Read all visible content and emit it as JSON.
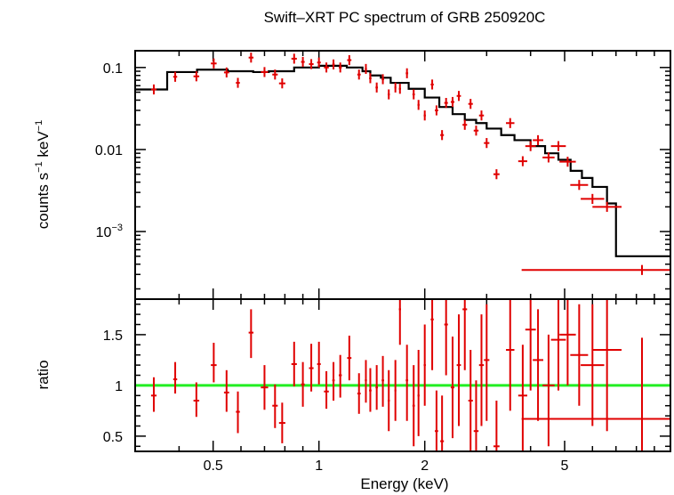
{
  "title": "Swift–XRT PC spectrum of GRB 250920C",
  "chart_data": [
    {
      "type": "scatter",
      "panel": "spectrum",
      "ylabel_main": "counts s",
      "ylabel_exp1": "−1",
      "ylabel_mid": " keV",
      "ylabel_exp2": "−1",
      "xscale": "log",
      "yscale": "log",
      "xlim": [
        0.3,
        10
      ],
      "ylim": [
        0.00015,
        0.16
      ],
      "yticks": [
        {
          "value": 0.1,
          "label": "0.1",
          "mant": "",
          "exp": ""
        },
        {
          "value": 0.01,
          "label": "0.01",
          "mant": "",
          "exp": ""
        },
        {
          "value": 0.001,
          "label": "",
          "mant": "10",
          "exp": "−3"
        }
      ],
      "data_color": "#e00000",
      "model_color": "#000000",
      "series": [
        {
          "name": "data",
          "points": [
            [
              0.339,
              0.054,
              0.018,
              0.01
            ],
            [
              0.39,
              0.077,
              0.013,
              0.016
            ],
            [
              0.448,
              0.078,
              0.019,
              0.012
            ],
            [
              0.502,
              0.112,
              0.019,
              0.013
            ],
            [
              0.546,
              0.087,
              0.017,
              0.013
            ],
            [
              0.588,
              0.065,
              0.013,
              0.013
            ],
            [
              0.641,
              0.132,
              0.016,
              0.014
            ],
            [
              0.7,
              0.088,
              0.024,
              0.013
            ],
            [
              0.75,
              0.082,
              0.018,
              0.012
            ],
            [
              0.786,
              0.064,
              0.021,
              0.01
            ],
            [
              0.85,
              0.128,
              0.018,
              0.013
            ],
            [
              0.9,
              0.117,
              0.012,
              0.013
            ],
            [
              0.951,
              0.11,
              0.015,
              0.014
            ],
            [
              1.0,
              0.115,
              0.012,
              0.014
            ],
            [
              1.05,
              0.1,
              0.016,
              0.01
            ],
            [
              1.1,
              0.109,
              0.008,
              0.011
            ],
            [
              1.15,
              0.1,
              0.01,
              0.01
            ],
            [
              1.22,
              0.123,
              0.014,
              0.013
            ],
            [
              1.3,
              0.082,
              0.011,
              0.009
            ],
            [
              1.36,
              0.096,
              0.007,
              0.01
            ],
            [
              1.4,
              0.074,
              0.008,
              0.008
            ],
            [
              1.46,
              0.057,
              0.008,
              0.008
            ],
            [
              1.52,
              0.072,
              0.008,
              0.008
            ],
            [
              1.58,
              0.047,
              0.007,
              0.009
            ],
            [
              1.65,
              0.057,
              0.006,
              0.009
            ],
            [
              1.7,
              0.055,
              0.007,
              0.01
            ],
            [
              1.78,
              0.085,
              0.008,
              0.01
            ],
            [
              1.86,
              0.047,
              0.008,
              0.009
            ],
            [
              1.92,
              0.035,
              0.007,
              0.01
            ],
            [
              2.0,
              0.026,
              0.007,
              0.01
            ],
            [
              2.1,
              0.062,
              0.01,
              0.01
            ],
            [
              2.16,
              0.03,
              0.011,
              0.01
            ],
            [
              2.24,
              0.015,
              0.012,
              0.01
            ],
            [
              2.3,
              0.037,
              0.012,
              0.01
            ],
            [
              2.4,
              0.038,
              0.012,
              0.01
            ],
            [
              2.5,
              0.045,
              0.014,
              0.01
            ],
            [
              2.6,
              0.02,
              0.015,
              0.01
            ],
            [
              2.7,
              0.036,
              0.015,
              0.01
            ],
            [
              2.8,
              0.017,
              0.016,
              0.01
            ],
            [
              2.9,
              0.026,
              0.016,
              0.01
            ],
            [
              3.0,
              0.012,
              0.018,
              0.01
            ],
            [
              3.2,
              0.005,
              0.02,
              0.01
            ],
            [
              3.5,
              0.021,
              0.028,
              0.01
            ],
            [
              3.8,
              0.0072,
              0.03,
              0.01
            ],
            [
              4.0,
              0.011,
              0.035,
              0.01
            ],
            [
              4.2,
              0.013,
              0.035,
              0.01
            ],
            [
              4.5,
              0.008,
              0.04,
              0.01
            ],
            [
              4.8,
              0.011,
              0.05,
              0.01
            ],
            [
              5.1,
              0.0071,
              0.055,
              0.01
            ],
            [
              5.5,
              0.0037,
              0.06,
              0.01
            ],
            [
              6.0,
              0.0025,
              0.08,
              0.01
            ],
            [
              6.6,
              0.002,
              0.1,
              0.01
            ],
            [
              8.3,
              0.00034,
              1.2,
              0.01
            ]
          ]
        },
        {
          "name": "model",
          "steps": [
            [
              0.3,
              0.054
            ],
            [
              0.37,
              0.088
            ],
            [
              0.45,
              0.094
            ],
            [
              0.55,
              0.09
            ],
            [
              0.65,
              0.088
            ],
            [
              0.72,
              0.09
            ],
            [
              0.85,
              0.1
            ],
            [
              1.0,
              0.105
            ],
            [
              1.2,
              0.1
            ],
            [
              1.33,
              0.09
            ],
            [
              1.4,
              0.08
            ],
            [
              1.5,
              0.075
            ],
            [
              1.6,
              0.065
            ],
            [
              1.8,
              0.055
            ],
            [
              2.0,
              0.043
            ],
            [
              2.2,
              0.033
            ],
            [
              2.4,
              0.027
            ],
            [
              2.6,
              0.023
            ],
            [
              2.8,
              0.021
            ],
            [
              3.0,
              0.018
            ],
            [
              3.3,
              0.015
            ],
            [
              3.6,
              0.013
            ],
            [
              4.0,
              0.011
            ],
            [
              4.4,
              0.009
            ],
            [
              4.8,
              0.0075
            ],
            [
              5.2,
              0.0055
            ],
            [
              5.6,
              0.0045
            ],
            [
              6.0,
              0.0035
            ],
            [
              6.6,
              0.0022
            ],
            [
              7.0,
              0.0005
            ],
            [
              10.0,
              0.0005
            ]
          ]
        }
      ]
    },
    {
      "type": "scatter",
      "panel": "ratio",
      "ylabel": "ratio",
      "xlabel": "Energy (keV)",
      "xscale": "log",
      "xlim": [
        0.3,
        10
      ],
      "ylim": [
        0.35,
        1.85
      ],
      "xticks": [
        {
          "value": 0.5,
          "label": "0.5"
        },
        {
          "value": 1,
          "label": "1"
        },
        {
          "value": 2,
          "label": "2"
        },
        {
          "value": 5,
          "label": "5"
        }
      ],
      "yticks": [
        {
          "value": 0.5,
          "label": "0.5"
        },
        {
          "value": 1,
          "label": "1"
        },
        {
          "value": 1.5,
          "label": "1.5"
        }
      ],
      "reference_line": {
        "value": 1,
        "color": "#22ee22"
      },
      "points": [
        [
          0.339,
          0.9,
          0.16,
          0.18
        ],
        [
          0.39,
          1.06,
          0.14,
          0.17
        ],
        [
          0.448,
          0.85,
          0.16,
          0.18
        ],
        [
          0.502,
          1.2,
          0.17,
          0.22
        ],
        [
          0.546,
          0.93,
          0.19,
          0.22
        ],
        [
          0.588,
          0.74,
          0.21,
          0.2
        ],
        [
          0.641,
          1.52,
          0.25,
          0.23
        ],
        [
          0.7,
          0.98,
          0.22,
          0.22
        ],
        [
          0.75,
          0.8,
          0.22,
          0.21
        ],
        [
          0.786,
          0.63,
          0.2,
          0.2
        ],
        [
          0.85,
          1.21,
          0.22,
          0.22
        ],
        [
          0.9,
          1.01,
          0.22,
          0.22
        ],
        [
          0.951,
          1.17,
          0.23,
          0.24
        ],
        [
          1.0,
          1.21,
          0.2,
          0.22
        ],
        [
          1.05,
          0.94,
          0.17,
          0.2
        ],
        [
          1.1,
          1.05,
          0.2,
          0.18
        ],
        [
          1.15,
          1.1,
          0.22,
          0.2
        ],
        [
          1.22,
          1.27,
          0.22,
          0.22
        ],
        [
          1.3,
          0.92,
          0.2,
          0.2
        ],
        [
          1.36,
          1.05,
          0.22,
          0.2
        ],
        [
          1.4,
          0.95,
          0.21,
          0.22
        ],
        [
          1.46,
          0.98,
          0.22,
          0.22
        ],
        [
          1.52,
          1.05,
          0.26,
          0.24
        ],
        [
          1.58,
          0.85,
          0.3,
          0.3
        ],
        [
          1.65,
          0.95,
          0.3,
          0.3
        ],
        [
          1.7,
          1.75,
          0.35,
          0.3
        ],
        [
          1.78,
          1.05,
          0.4,
          0.35
        ],
        [
          1.86,
          0.8,
          0.4,
          0.4
        ],
        [
          1.92,
          0.9,
          0.4,
          0.45
        ],
        [
          2.0,
          1.2,
          0.4,
          0.4
        ],
        [
          2.1,
          1.65,
          0.5,
          0.3
        ],
        [
          2.16,
          0.55,
          0.5,
          0.4
        ],
        [
          2.24,
          0.45,
          0.5,
          0.45
        ],
        [
          2.3,
          1.6,
          0.5,
          0.3
        ],
        [
          2.4,
          0.98,
          0.5,
          0.5
        ],
        [
          2.5,
          1.2,
          0.6,
          0.5
        ],
        [
          2.6,
          1.75,
          0.6,
          0.3
        ],
        [
          2.7,
          0.85,
          0.6,
          0.5
        ],
        [
          2.8,
          0.55,
          0.6,
          0.5
        ],
        [
          2.9,
          1.2,
          0.6,
          0.5
        ],
        [
          3.0,
          1.25,
          0.6,
          0.55
        ],
        [
          3.2,
          0.4,
          0.6,
          0.45
        ],
        [
          3.5,
          1.35,
          0.6,
          0.5
        ],
        [
          3.8,
          0.9,
          0.6,
          0.5
        ],
        [
          4.0,
          1.55,
          0.6,
          0.5
        ],
        [
          4.2,
          1.25,
          0.6,
          0.5
        ],
        [
          4.5,
          1.0,
          0.6,
          0.5
        ],
        [
          4.8,
          1.45,
          0.5,
          0.5
        ],
        [
          5.1,
          1.5,
          0.5,
          0.6
        ],
        [
          5.5,
          1.3,
          0.5,
          0.5
        ],
        [
          6.0,
          1.2,
          0.6,
          0.6
        ],
        [
          6.6,
          1.35,
          0.8,
          0.6
        ],
        [
          8.3,
          0.67,
          0.33,
          0.8
        ]
      ]
    }
  ]
}
